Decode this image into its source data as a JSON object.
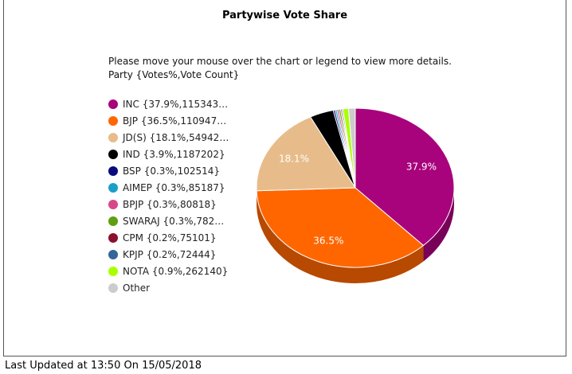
{
  "title": "Partywise Vote Share",
  "instructions": [
    "Please move your mouse over the chart or legend to view more details.",
    "Party {Votes%,Vote Count}"
  ],
  "last_updated": "Last Updated at 13:50 On 15/05/2018",
  "chart_data": {
    "type": "pie",
    "title": "Partywise Vote Share",
    "legend_position": "left",
    "series": [
      {
        "name": "INC",
        "legend_label": "INC {37.9%,115343…",
        "percent": 37.9,
        "label": "37.9%",
        "color": "#a8037c"
      },
      {
        "name": "BJP",
        "legend_label": "BJP {36.5%,110947…",
        "percent": 36.5,
        "label": "36.5%",
        "color": "#ff6600"
      },
      {
        "name": "JD(S)",
        "legend_label": "JD(S) {18.1%,54942…",
        "percent": 18.1,
        "label": "18.1%",
        "color": "#e8bc8a"
      },
      {
        "name": "IND",
        "legend_label": "IND {3.9%,1187202}",
        "percent": 3.9,
        "label": "",
        "color": "#000000"
      },
      {
        "name": "BSP",
        "legend_label": "BSP {0.3%,102514}",
        "percent": 0.3,
        "label": "",
        "color": "#0a0a7e"
      },
      {
        "name": "AIMEP",
        "legend_label": "AIMEP {0.3%,85187}",
        "percent": 0.3,
        "label": "",
        "color": "#1a9fc9"
      },
      {
        "name": "BPJP",
        "legend_label": "BPJP {0.3%,80818}",
        "percent": 0.3,
        "label": "",
        "color": "#d9478a"
      },
      {
        "name": "SWARAJ",
        "legend_label": "SWARAJ {0.3%,782…",
        "percent": 0.3,
        "label": "",
        "color": "#5e9e10"
      },
      {
        "name": "CPM",
        "legend_label": "CPM {0.2%,75101}",
        "percent": 0.2,
        "label": "",
        "color": "#8a1030"
      },
      {
        "name": "KPJP",
        "legend_label": "KPJP {0.2%,72444}",
        "percent": 0.2,
        "label": "",
        "color": "#336699"
      },
      {
        "name": "NOTA",
        "legend_label": "NOTA {0.9%,262140}",
        "percent": 0.9,
        "label": "",
        "color": "#aaff00"
      },
      {
        "name": "Other",
        "legend_label": "Other",
        "percent": 1.1,
        "label": "",
        "color": "#cccccc"
      }
    ]
  }
}
